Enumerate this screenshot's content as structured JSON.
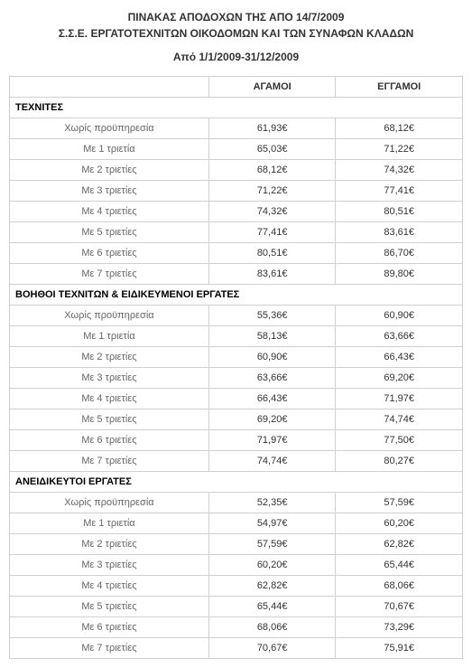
{
  "header": {
    "line1": "ΠΙΝΑΚΑΣ ΑΠΟΔΟΧΩΝ ΤΗΣ ΑΠΟ 14/7/2009",
    "line2": "Σ.Σ.Ε. ΕΡΓΑΤΟΤΕΧΝΙΤΩΝ ΟΙΚΟΔΟΜΩΝ ΚΑΙ ΤΩΝ ΣΥΝΑΦΩΝ ΚΛΑΔΩΝ",
    "period": "Από 1/1/2009-31/12/2009"
  },
  "columns": {
    "blank": "",
    "col1": "ΑΓΑΜΟΙ",
    "col2": "ΕΓΓΑΜΟΙ"
  },
  "sections": [
    {
      "title": "ΤΕΧΝΙΤΕΣ",
      "rows": [
        {
          "label": "Χωρίς προϋπηρεσία",
          "a": "61,93€",
          "b": "68,12€"
        },
        {
          "label": "Με 1 τριετία",
          "a": "65,03€",
          "b": "71,22€"
        },
        {
          "label": "Με 2 τριετίες",
          "a": "68,12€",
          "b": "74,32€"
        },
        {
          "label": "Με 3 τριετίες",
          "a": "71,22€",
          "b": "77,41€"
        },
        {
          "label": "Με 4 τριετίες",
          "a": "74,32€",
          "b": "80,51€"
        },
        {
          "label": "Με 5 τριετίες",
          "a": "77,41€",
          "b": "83,61€"
        },
        {
          "label": "Με 6 τριετίες",
          "a": "80,51€",
          "b": "86,70€"
        },
        {
          "label": "Με 7 τριετίες",
          "a": "83,61€",
          "b": "89,80€"
        }
      ]
    },
    {
      "title": "ΒΟΗΘΟΙ ΤΕΧΝΙΤΩΝ & ΕΙΔΙΚΕΥΜΕΝΟΙ ΕΡΓΑΤΕΣ",
      "rows": [
        {
          "label": "Χωρίς προϋπηρεσία",
          "a": "55,36€",
          "b": "60,90€"
        },
        {
          "label": "Με 1 τριετία",
          "a": "58,13€",
          "b": "63,66€"
        },
        {
          "label": "Με 2 τριετίες",
          "a": "60,90€",
          "b": "66,43€"
        },
        {
          "label": "Με 3 τριετίες",
          "a": "63,66€",
          "b": "69,20€"
        },
        {
          "label": "Με 4 τριετίες",
          "a": "66,43€",
          "b": "71,97€"
        },
        {
          "label": "Με 5 τριετίες",
          "a": "69,20€",
          "b": "74,74€"
        },
        {
          "label": "Με 6 τριετίες",
          "a": "71,97€",
          "b": "77,50€"
        },
        {
          "label": "Με 7 τριετίες",
          "a": "74,74€",
          "b": "80,27€"
        }
      ]
    },
    {
      "title": "ΑΝΕΙΔΙΚΕΥΤΟΙ ΕΡΓΑΤΕΣ",
      "rows": [
        {
          "label": "Χωρίς προϋπηρεσία",
          "a": "52,35€",
          "b": "57,59€"
        },
        {
          "label": "Με 1 τριετία",
          "a": "54,97€",
          "b": "60,20€"
        },
        {
          "label": "Με 2 τριετίες",
          "a": "57,59€",
          "b": "62,82€"
        },
        {
          "label": "Με 3 τριετίες",
          "a": "60,20€",
          "b": "65,44€"
        },
        {
          "label": "Με 4 τριετίες",
          "a": "62,82€",
          "b": "68,06€"
        },
        {
          "label": "Με 5 τριετίες",
          "a": "65,44€",
          "b": "70,67€"
        },
        {
          "label": "Με 6 τριετίες",
          "a": "68,06€",
          "b": "73,29€"
        },
        {
          "label": "Με 7 τριετίες",
          "a": "70,67€",
          "b": "75,91€"
        }
      ]
    }
  ]
}
